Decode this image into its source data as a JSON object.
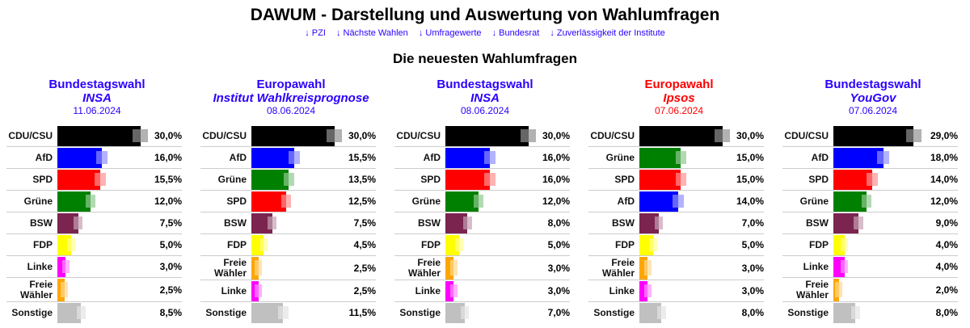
{
  "title": "DAWUM - Darstellung und Auswertung von Wahlumfragen",
  "nav": [
    "↓ PZI",
    "↓ Nächste Wahlen",
    "↓ Umfragewerte",
    "↓ Bundesrat",
    "↓ Zuverlässigkeit der Institute"
  ],
  "subtitle": "Die neuesten Wahlumfragen",
  "party_colors": {
    "CDU/CSU": "#000000",
    "AfD": "#0000ff",
    "SPD": "#ff0000",
    "Grüne": "#008000",
    "BSW": "#7b2450",
    "FDP": "#ffff00",
    "Linke": "#ff00ff",
    "Freie Wähler": "#ffa500",
    "Sonstige": "#c0c0c0"
  },
  "polls": [
    {
      "election": "Bundestagswahl",
      "institute": "INSA",
      "date": "11.06.2024",
      "color": "#2a00ff",
      "results": [
        {
          "party": "CDU/CSU",
          "value": 30.0,
          "label": "30,0%"
        },
        {
          "party": "AfD",
          "value": 16.0,
          "label": "16,0%"
        },
        {
          "party": "SPD",
          "value": 15.5,
          "label": "15,5%"
        },
        {
          "party": "Grüne",
          "value": 12.0,
          "label": "12,0%"
        },
        {
          "party": "BSW",
          "value": 7.5,
          "label": "7,5%"
        },
        {
          "party": "FDP",
          "value": 5.0,
          "label": "5,0%"
        },
        {
          "party": "Linke",
          "value": 3.0,
          "label": "3,0%"
        },
        {
          "party": "Freie Wähler",
          "value": 2.5,
          "label": "2,5%"
        },
        {
          "party": "Sonstige",
          "value": 8.5,
          "label": "8,5%"
        }
      ]
    },
    {
      "election": "Europawahl",
      "institute": "Institut Wahlkreisprognose",
      "date": "08.06.2024",
      "color": "#2a00ff",
      "results": [
        {
          "party": "CDU/CSU",
          "value": 30.0,
          "label": "30,0%"
        },
        {
          "party": "AfD",
          "value": 15.5,
          "label": "15,5%"
        },
        {
          "party": "Grüne",
          "value": 13.5,
          "label": "13,5%"
        },
        {
          "party": "SPD",
          "value": 12.5,
          "label": "12,5%"
        },
        {
          "party": "BSW",
          "value": 7.5,
          "label": "7,5%"
        },
        {
          "party": "FDP",
          "value": 4.5,
          "label": "4,5%"
        },
        {
          "party": "Freie Wähler",
          "value": 2.5,
          "label": "2,5%"
        },
        {
          "party": "Linke",
          "value": 2.5,
          "label": "2,5%"
        },
        {
          "party": "Sonstige",
          "value": 11.5,
          "label": "11,5%"
        }
      ]
    },
    {
      "election": "Bundestagswahl",
      "institute": "INSA",
      "date": "08.06.2024",
      "color": "#2a00ff",
      "results": [
        {
          "party": "CDU/CSU",
          "value": 30.0,
          "label": "30,0%"
        },
        {
          "party": "AfD",
          "value": 16.0,
          "label": "16,0%"
        },
        {
          "party": "SPD",
          "value": 16.0,
          "label": "16,0%"
        },
        {
          "party": "Grüne",
          "value": 12.0,
          "label": "12,0%"
        },
        {
          "party": "BSW",
          "value": 8.0,
          "label": "8,0%"
        },
        {
          "party": "FDP",
          "value": 5.0,
          "label": "5,0%"
        },
        {
          "party": "Freie Wähler",
          "value": 3.0,
          "label": "3,0%"
        },
        {
          "party": "Linke",
          "value": 3.0,
          "label": "3,0%"
        },
        {
          "party": "Sonstige",
          "value": 7.0,
          "label": "7,0%"
        }
      ]
    },
    {
      "election": "Europawahl",
      "institute": "Ipsos",
      "date": "07.06.2024",
      "color": "#ff0000",
      "results": [
        {
          "party": "CDU/CSU",
          "value": 30.0,
          "label": "30,0%"
        },
        {
          "party": "Grüne",
          "value": 15.0,
          "label": "15,0%"
        },
        {
          "party": "SPD",
          "value": 15.0,
          "label": "15,0%"
        },
        {
          "party": "AfD",
          "value": 14.0,
          "label": "14,0%"
        },
        {
          "party": "BSW",
          "value": 7.0,
          "label": "7,0%"
        },
        {
          "party": "FDP",
          "value": 5.0,
          "label": "5,0%"
        },
        {
          "party": "Freie Wähler",
          "value": 3.0,
          "label": "3,0%"
        },
        {
          "party": "Linke",
          "value": 3.0,
          "label": "3,0%"
        },
        {
          "party": "Sonstige",
          "value": 8.0,
          "label": "8,0%"
        }
      ]
    },
    {
      "election": "Bundestagswahl",
      "institute": "YouGov",
      "date": "07.06.2024",
      "color": "#2a00ff",
      "results": [
        {
          "party": "CDU/CSU",
          "value": 29.0,
          "label": "29,0%"
        },
        {
          "party": "AfD",
          "value": 18.0,
          "label": "18,0%"
        },
        {
          "party": "SPD",
          "value": 14.0,
          "label": "14,0%"
        },
        {
          "party": "Grüne",
          "value": 12.0,
          "label": "12,0%"
        },
        {
          "party": "BSW",
          "value": 9.0,
          "label": "9,0%"
        },
        {
          "party": "FDP",
          "value": 4.0,
          "label": "4,0%"
        },
        {
          "party": "Linke",
          "value": 4.0,
          "label": "4,0%"
        },
        {
          "party": "Freie Wähler",
          "value": 2.0,
          "label": "2,0%"
        },
        {
          "party": "Sonstige",
          "value": 8.0,
          "label": "8,0%"
        }
      ]
    }
  ]
}
